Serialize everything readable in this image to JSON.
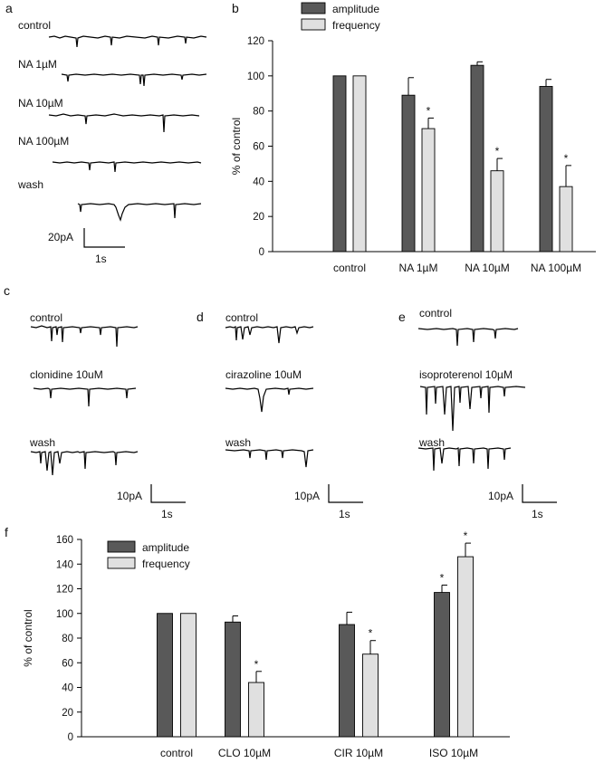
{
  "panels": {
    "a": {
      "letter": "a",
      "trace_labels": [
        "control",
        "NA 1µM",
        "NA 10µM",
        "NA 100µM",
        "wash"
      ],
      "scalebar": {
        "amp": "20pA",
        "time": "1s"
      }
    },
    "c": {
      "letter": "c",
      "trace_labels": [
        "control",
        "clonidine 10uM",
        "wash"
      ],
      "scalebar": {
        "amp": "10pA",
        "time": "1s"
      }
    },
    "d": {
      "letter": "d",
      "trace_labels": [
        "control",
        "cirazoline 10uM",
        "wash"
      ],
      "scalebar": {
        "amp": "10pA",
        "time": "1s"
      }
    },
    "e": {
      "letter": "e",
      "trace_labels": [
        "control",
        "isoproterenol 10µM",
        "wash"
      ],
      "scalebar": {
        "amp": "10pA",
        "time": "1s"
      }
    },
    "b": {
      "letter": "b"
    },
    "f": {
      "letter": "f"
    }
  },
  "chart_data": [
    {
      "panel": "b",
      "type": "bar",
      "ylabel": "% of control",
      "ylim": [
        0,
        120
      ],
      "yticks": [
        0,
        20,
        40,
        60,
        80,
        100,
        120
      ],
      "categories": [
        "control",
        "NA 1µM",
        "NA 10µM",
        "NA 100µM"
      ],
      "series": [
        {
          "name": "amplitude",
          "color": "#595959",
          "values": [
            100,
            89,
            106,
            94
          ],
          "errors": [
            0,
            10,
            2,
            4
          ],
          "significant": [
            false,
            false,
            false,
            false
          ]
        },
        {
          "name": "frequency",
          "color": "#e0e0e0",
          "values": [
            100,
            70,
            46,
            37
          ],
          "errors": [
            0,
            6,
            7,
            12
          ],
          "significant": [
            false,
            true,
            true,
            true
          ]
        }
      ],
      "legend_position": "top",
      "significance_marker": "*",
      "grid": false
    },
    {
      "panel": "f",
      "type": "bar",
      "ylabel": "% of control",
      "ylim": [
        0,
        160
      ],
      "yticks": [
        0,
        20,
        40,
        60,
        80,
        100,
        120,
        140,
        160
      ],
      "categories": [
        "control",
        "CLO 10µM",
        "CIR 10µM",
        "ISO 10µM"
      ],
      "series": [
        {
          "name": "amplitude",
          "color": "#595959",
          "values": [
            100,
            93,
            91,
            117
          ],
          "errors": [
            0,
            5,
            10,
            6
          ],
          "significant": [
            false,
            false,
            false,
            true
          ]
        },
        {
          "name": "frequency",
          "color": "#e0e0e0",
          "values": [
            100,
            44,
            67,
            146
          ],
          "errors": [
            0,
            9,
            11,
            11
          ],
          "significant": [
            false,
            true,
            true,
            true
          ]
        }
      ],
      "legend_position": "top-left",
      "significance_marker": "*",
      "grid": false
    }
  ]
}
